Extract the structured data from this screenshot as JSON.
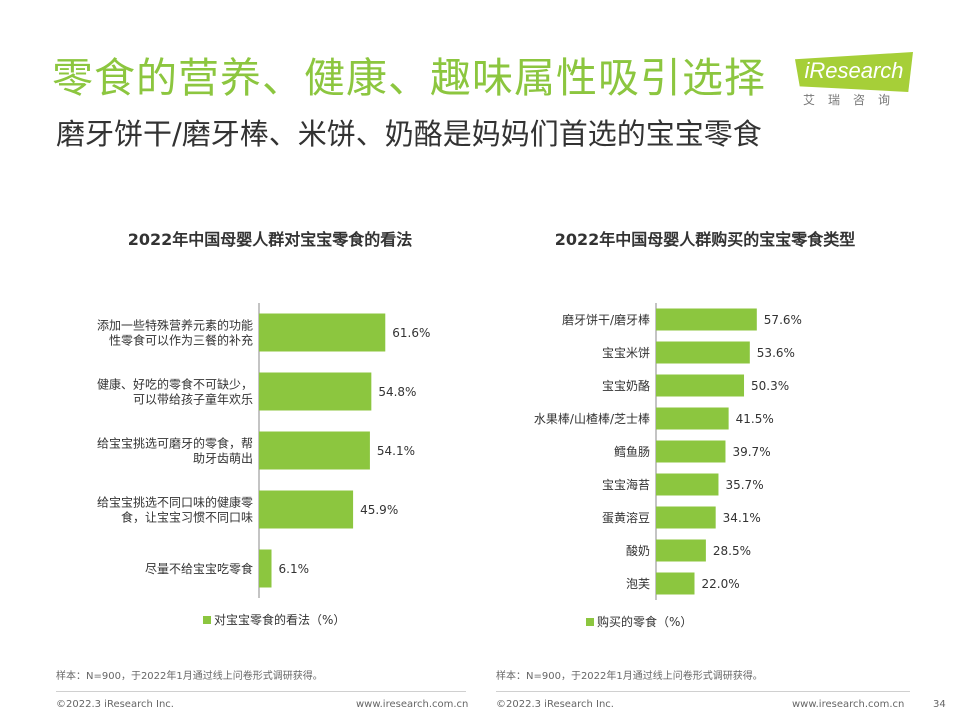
{
  "header": {
    "title": "零食的营养、健康、趣味属性吸引选择",
    "subtitle": "磨牙饼干/磨牙棒、米饼、奶酪是妈妈们首选的宝宝零食"
  },
  "logo": {
    "wordmark": "iResearch",
    "chinese": "艾瑞咨询"
  },
  "colors": {
    "accent": "#8cc63f",
    "bar": "#8cc63f",
    "axis": "#888888"
  },
  "chart_data": [
    {
      "type": "bar",
      "orientation": "horizontal",
      "title": "2022年中国母婴人群对宝宝零食的看法",
      "categories": [
        [
          "添加一些特殊营养元素的功能",
          "性零食可以作为三餐的补充"
        ],
        [
          "健康、好吃的零食不可缺少，",
          "可以带给孩子童年欢乐"
        ],
        [
          "给宝宝挑选可磨牙的零食，帮",
          "助牙齿萌出"
        ],
        [
          "给宝宝挑选不同口味的健康零",
          "食，让宝宝习惯不同口味"
        ],
        [
          "尽量不给宝宝吃零食"
        ]
      ],
      "series": [
        {
          "name": "对宝宝零食的看法（%）",
          "values": [
            61.6,
            54.8,
            54.1,
            45.9,
            6.1
          ],
          "labels": [
            "61.6%",
            "54.8%",
            "54.1%",
            "45.9%",
            "6.1%"
          ]
        }
      ],
      "xlim": [
        0,
        100
      ],
      "legend": "bottom",
      "grid": false
    },
    {
      "type": "bar",
      "orientation": "horizontal",
      "title": "2022年中国母婴人群购买的宝宝零食类型",
      "categories": [
        [
          "磨牙饼干/磨牙棒"
        ],
        [
          "宝宝米饼"
        ],
        [
          "宝宝奶酪"
        ],
        [
          "水果棒/山楂棒/芝士棒"
        ],
        [
          "鳕鱼肠"
        ],
        [
          "宝宝海苔"
        ],
        [
          "蛋黄溶豆"
        ],
        [
          "酸奶"
        ],
        [
          "泡芙"
        ]
      ],
      "series": [
        {
          "name": "购买的零食（%）",
          "values": [
            57.6,
            53.6,
            50.3,
            41.5,
            39.7,
            35.7,
            34.1,
            28.5,
            22.0
          ],
          "labels": [
            "57.6%",
            "53.6%",
            "50.3%",
            "41.5%",
            "39.7%",
            "35.7%",
            "34.1%",
            "28.5%",
            "22.0%"
          ]
        }
      ],
      "xlim": [
        0,
        100
      ],
      "legend": "bottom",
      "grid": false
    }
  ],
  "notes": {
    "left": "样本：N=900，于2022年1月通过线上问卷形式调研获得。",
    "right": "样本：N=900，于2022年1月通过线上问卷形式调研获得。"
  },
  "footer": {
    "left_copyright": "©2022.3 iResearch Inc.",
    "left_url": "www.iresearch.com.cn",
    "right_copyright": "©2022.3 iResearch Inc.",
    "right_url": "www.iresearch.com.cn",
    "page_number": "34"
  }
}
